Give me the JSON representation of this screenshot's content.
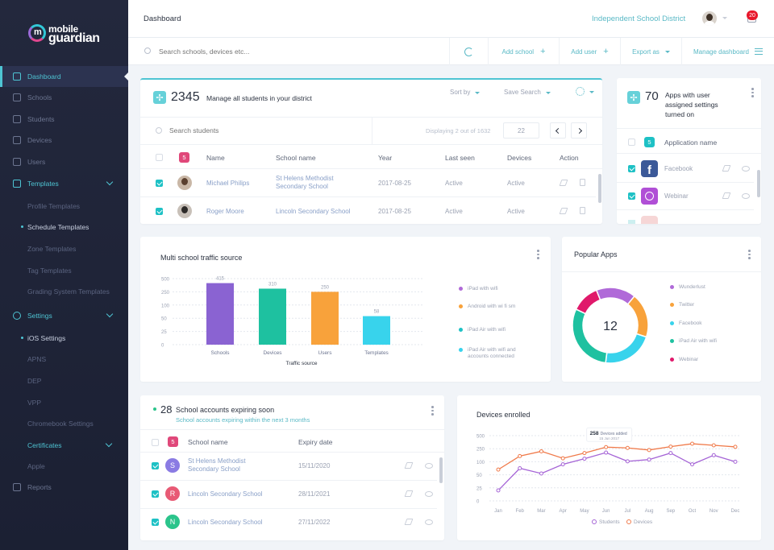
{
  "brand": {
    "line1": "mobile",
    "line2": "guardian",
    "mark": "m"
  },
  "sidebar": {
    "items": [
      {
        "label": "Dashboard",
        "icon": "dashboard-icon"
      },
      {
        "label": "Schools",
        "icon": "home-icon"
      },
      {
        "label": "Students",
        "icon": "students-icon"
      },
      {
        "label": "Devices",
        "icon": "device-icon"
      },
      {
        "label": "Users",
        "icon": "users-icon"
      },
      {
        "label": "Templates",
        "icon": "templates-icon"
      }
    ],
    "templates_sub": [
      "Profile Templates",
      "Schedule Templates",
      "Zone Templates",
      "Tag Templates",
      "Grading System Templates"
    ],
    "settings_label": "Settings",
    "settings_sub": [
      "iOS Settings",
      "APNS",
      "DEP",
      "VPP",
      "Chromebook Settings"
    ],
    "certificates_label": "Certificates",
    "certificates_sub": [
      "Apple"
    ],
    "reports_label": "Reports"
  },
  "header": {
    "title": "Dashboard",
    "district": "Independent School District",
    "notifications": "20"
  },
  "toolbar": {
    "search_placeholder": "Search schools, devices etc...",
    "add_school": "Add school",
    "add_user": "Add user",
    "export": "Export as",
    "manage": "Manage dashboard"
  },
  "students": {
    "count": "2345",
    "title": "Manage all students in your district",
    "sort_by": "Sort by",
    "save_search": "Save Search",
    "search_placeholder": "Search students",
    "displaying": "Displaying 2 out of 1632",
    "page": "22",
    "selected": "5",
    "columns": [
      "Name",
      "School name",
      "Year",
      "Last seen",
      "Devices",
      "Action"
    ],
    "rows": [
      {
        "name": "Michael Philips",
        "school": "St Helens Methodist Secondary School",
        "year": "2017-08-25",
        "last_seen": "Active",
        "devices": "Active"
      },
      {
        "name": "Roger Moore",
        "school": "Lincoln Secondary School",
        "year": "2017-08-25",
        "last_seen": "Active",
        "devices": "Active"
      }
    ]
  },
  "apps": {
    "count": "70",
    "title": "Apps with user assigned settings turned on",
    "selected": "5",
    "column": "Application name",
    "rows": [
      {
        "name": "Facebook",
        "color": "#3b5998"
      },
      {
        "name": "Webinar",
        "color": "#b04fd6"
      }
    ]
  },
  "traffic": {
    "title": "Multi school traffic source"
  },
  "chart_data": [
    {
      "type": "bar",
      "title": "Multi school traffic source",
      "xlabel": "Traffic source",
      "categories": [
        "Schools",
        "Devices",
        "Users",
        "Templates"
      ],
      "values": [
        415,
        310,
        250,
        58
      ],
      "yticks": [
        "500",
        "250",
        "100",
        "50",
        "25",
        "0"
      ],
      "colors": [
        "#8a63d2",
        "#1ec1a0",
        "#f8a23b",
        "#38d3ec"
      ],
      "legend": [
        {
          "label": "iPad with wifi",
          "color": "#b06ad8"
        },
        {
          "label": "Android with wi fi sm",
          "color": "#f8a23b"
        },
        {
          "label": "iPad Air with wifi",
          "color": "#1ec1c5"
        },
        {
          "label": "iPad Air with wifi and accounts connected",
          "color": "#38d3ec"
        }
      ]
    },
    {
      "type": "pie",
      "title": "Popular Apps",
      "center_label": "12",
      "slices": [
        {
          "label": "Wunderlust",
          "value": 17,
          "color": "#b06ad8"
        },
        {
          "label": "Twitter",
          "value": 19,
          "color": "#f8a23b"
        },
        {
          "label": "Facebook",
          "value": 22,
          "color": "#38d3ec"
        },
        {
          "label": "iPad Air with wifi",
          "value": 30,
          "color": "#1ec1a0"
        },
        {
          "label": "Webinar",
          "value": 12,
          "color": "#e0196b"
        }
      ]
    },
    {
      "type": "line",
      "title": "Devices enrolled",
      "x": [
        "Jan",
        "Feb",
        "Mar",
        "Apr",
        "May",
        "Jun",
        "Jul",
        "Aug",
        "Sep",
        "Oct",
        "Nov",
        "Dec"
      ],
      "yticks": [
        "500",
        "250",
        "100",
        "50",
        "25",
        "0"
      ],
      "series": [
        {
          "name": "Students",
          "color": "#a564d6",
          "values": [
            20,
            75,
            55,
            90,
            135,
            205,
            105,
            125,
            200,
            90,
            175,
            100
          ]
        },
        {
          "name": "Devices",
          "color": "#f07a4a",
          "values": [
            70,
            165,
            220,
            140,
            200,
            280,
            265,
            235,
            290,
            345,
            315,
            285
          ]
        }
      ],
      "annotation": {
        "value": "258",
        "text": "Devices added",
        "date": "15 Jun 2017"
      }
    }
  ],
  "popular": {
    "title": "Popular Apps",
    "center": "12"
  },
  "expiring": {
    "count": "28",
    "title": "School accounts expiring soon",
    "subtitle": "School accounts expiring within the next 3 months",
    "selected": "5",
    "columns": [
      "School name",
      "Expiry date"
    ],
    "rows": [
      {
        "initial": "S",
        "name": "St Helens Methodist Secondary School",
        "date": "15/11/2020",
        "color": "#8a7be3"
      },
      {
        "initial": "R",
        "name": "Lincoln Secondary School",
        "date": "28/11/2021",
        "color": "#e85a75"
      },
      {
        "initial": "N",
        "name": "Lincoln Secondary School",
        "date": "27/11/2022",
        "color": "#2bc48b"
      }
    ]
  },
  "devices": {
    "title": "Devices enrolled",
    "legend_students": "Students",
    "legend_devices": "Devices"
  }
}
